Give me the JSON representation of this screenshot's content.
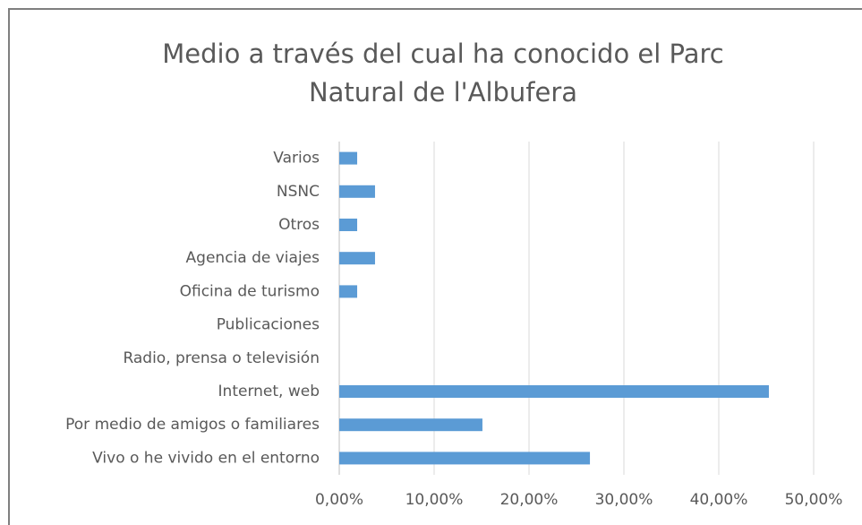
{
  "chart_data": {
    "type": "bar",
    "orientation": "horizontal",
    "title": [
      "Medio a través del cual ha conocido el Parc",
      "Natural de l'Albufera"
    ],
    "categories": [
      "Varios",
      "NSNC",
      "Otros",
      "Agencia de viajes",
      "Oficina de turismo",
      "Publicaciones",
      "Radio, prensa o televisión",
      "Internet, web",
      "Por medio de amigos o familiares",
      "Vivo o he vivido en el entorno"
    ],
    "values": [
      1.89,
      3.77,
      1.89,
      3.77,
      1.89,
      0,
      0,
      45.28,
      15.09,
      26.42
    ],
    "color": "#5b9bd5",
    "xlim": [
      0,
      50
    ],
    "xticks": [
      {
        "value": 0,
        "label": "0,00%"
      },
      {
        "value": 10,
        "label": "10,00%"
      },
      {
        "value": 20,
        "label": "20,00%"
      },
      {
        "value": 30,
        "label": "30,00%"
      },
      {
        "value": 40,
        "label": "40,00%"
      },
      {
        "value": 50,
        "label": "50,00%"
      }
    ],
    "grid": true
  }
}
